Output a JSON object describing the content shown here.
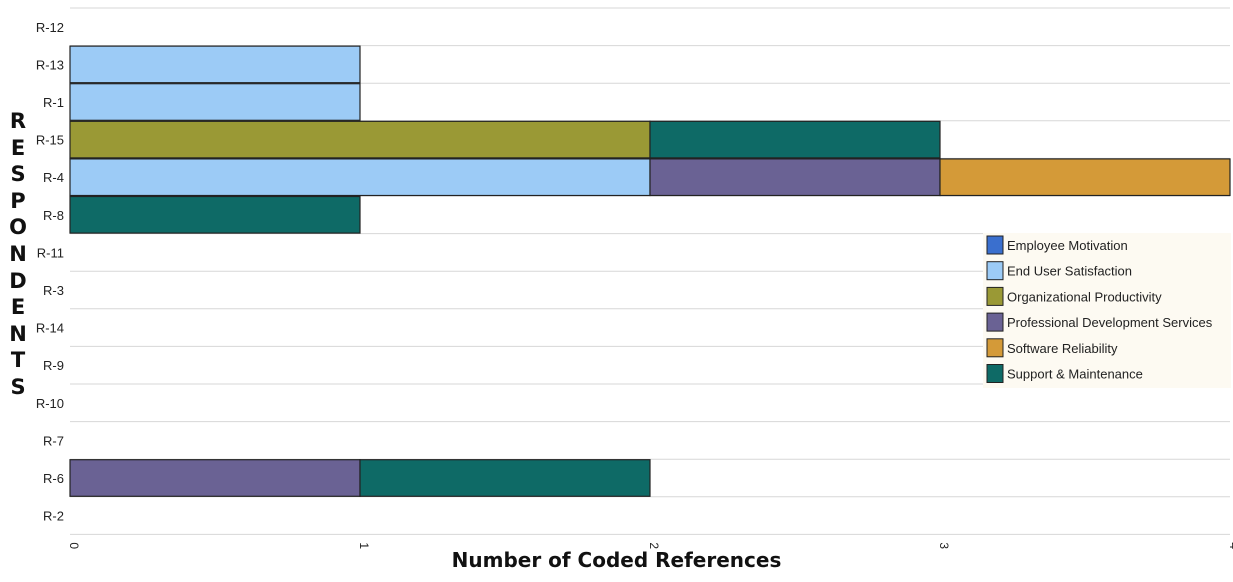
{
  "chart_data": {
    "type": "bar",
    "orientation": "horizontal",
    "stacked": true,
    "title": "",
    "xlabel": "Number of Coded References",
    "ylabel": "RESPONDENTS",
    "categories": [
      "R-12",
      "R-13",
      "R-1",
      "R-15",
      "R-4",
      "R-8",
      "R-11",
      "R-3",
      "R-14",
      "R-9",
      "R-10",
      "R-7",
      "R-6",
      "R-2"
    ],
    "xlim": [
      0,
      4
    ],
    "xticks": [
      "0",
      "1",
      "2",
      "3",
      "4"
    ],
    "grid": true,
    "legend_position": "right",
    "series": [
      {
        "name": "Employee Motivation",
        "color": "#3a6fce",
        "values": [
          0,
          0,
          0,
          0,
          0,
          0,
          0,
          0,
          0,
          0,
          0,
          0,
          0,
          0
        ]
      },
      {
        "name": "End User Satisfaction",
        "color": "#9ccbf6",
        "values": [
          0,
          1,
          1,
          0,
          2,
          0,
          0,
          0,
          0,
          0,
          0,
          0,
          0,
          0
        ]
      },
      {
        "name": "Organizational Productivity",
        "color": "#9a9935",
        "values": [
          0,
          0,
          0,
          2,
          0,
          0,
          0,
          0,
          0,
          0,
          0,
          0,
          0,
          0
        ]
      },
      {
        "name": "Professional Development Services",
        "color": "#6a6294",
        "values": [
          0,
          0,
          0,
          0,
          1,
          0,
          0,
          0,
          0,
          0,
          0,
          0,
          1,
          0
        ]
      },
      {
        "name": "Software Reliability",
        "color": "#d49a38",
        "values": [
          0,
          0,
          0,
          0,
          1,
          0,
          0,
          0,
          0,
          0,
          0,
          0,
          0,
          0
        ]
      },
      {
        "name": "Support & Maintenance",
        "color": "#0e6a66",
        "values": [
          0,
          0,
          0,
          1,
          0,
          1,
          0,
          0,
          0,
          0,
          0,
          0,
          1,
          0
        ]
      }
    ]
  }
}
